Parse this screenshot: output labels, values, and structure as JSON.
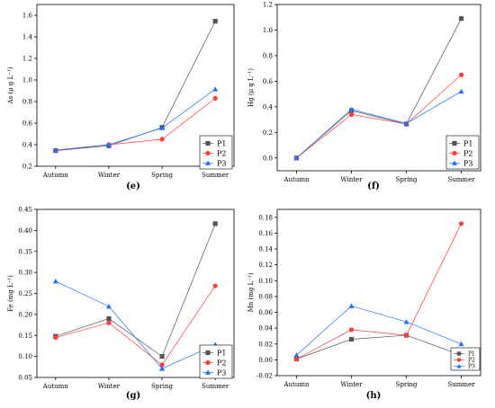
{
  "categories": [
    "Autumn",
    "Winter",
    "Spring",
    "Summer"
  ],
  "series_colors": {
    "P1": "#555555",
    "P2": "#ff3b3b",
    "P3": "#1e6fff"
  },
  "chart_data": [
    {
      "id": "e",
      "type": "line",
      "panel_label": "(e)",
      "xlabel": "",
      "ylabel": "As (μ g L⁻¹)",
      "ylim": [
        0.2,
        1.7
      ],
      "yticks": [
        "0.2",
        "0.4",
        "0.6",
        "0.8",
        "1.0",
        "1.2",
        "1.4",
        "1.6"
      ],
      "legend": "lower-right",
      "categories": [
        "Autumn",
        "Winter",
        "Spring",
        "Summer"
      ],
      "series": [
        {
          "name": "P1",
          "values": [
            0.345,
            0.39,
            0.56,
            1.545
          ]
        },
        {
          "name": "P2",
          "values": [
            0.345,
            0.4,
            0.45,
            0.83
          ]
        },
        {
          "name": "P3",
          "values": [
            0.35,
            0.4,
            0.555,
            0.915
          ]
        }
      ]
    },
    {
      "id": "f",
      "type": "line",
      "panel_label": "(f)",
      "xlabel": "",
      "ylabel": "Hg (μ g L⁻¹)",
      "ylim": [
        -0.1,
        1.2
      ],
      "yticks": [
        "0.0",
        "0.2",
        "0.4",
        "0.6",
        "0.8",
        "1.0",
        "1.2"
      ],
      "legend": "lower-right",
      "categories": [
        "Autumn",
        "Winter",
        "Spring",
        "Summer"
      ],
      "series": [
        {
          "name": "P1",
          "values": [
            0.0,
            0.37,
            0.265,
            1.09
          ]
        },
        {
          "name": "P2",
          "values": [
            0.0,
            0.34,
            0.265,
            0.65
          ]
        },
        {
          "name": "P3",
          "values": [
            0.0,
            0.38,
            0.27,
            0.52
          ]
        }
      ]
    },
    {
      "id": "g",
      "type": "line",
      "panel_label": "(g)",
      "xlabel": "",
      "ylabel": "Fe (mg L⁻¹)",
      "ylim": [
        0.05,
        0.45
      ],
      "yticks": [
        "0.05",
        "0.10",
        "0.15",
        "0.20",
        "0.25",
        "0.30",
        "0.35",
        "0.40",
        "0.45"
      ],
      "legend": "lower-right",
      "categories": [
        "Autumn",
        "Winter",
        "Spring",
        "Summer"
      ],
      "series": [
        {
          "name": "P1",
          "values": [
            0.148,
            0.19,
            0.1,
            0.416
          ]
        },
        {
          "name": "P2",
          "values": [
            0.145,
            0.18,
            0.08,
            0.268
          ]
        },
        {
          "name": "P3",
          "values": [
            0.279,
            0.219,
            0.071,
            0.128
          ]
        }
      ]
    },
    {
      "id": "h",
      "type": "line",
      "panel_label": "(h)",
      "xlabel": "",
      "ylabel": "Mn (mg L⁻¹)",
      "ylim": [
        -0.02,
        0.19
      ],
      "yticks": [
        "-0.02",
        "0.00",
        "0.02",
        "0.04",
        "0.06",
        "0.08",
        "0.10",
        "0.12",
        "0.14",
        "0.16",
        "0.18"
      ],
      "legend": "lower-right",
      "categories": [
        "Autumn",
        "Winter",
        "Spring",
        "Summer"
      ],
      "series": [
        {
          "name": "P1",
          "values": [
            0.001,
            0.026,
            0.031,
            0.006
          ]
        },
        {
          "name": "P2",
          "values": [
            0.001,
            0.038,
            0.031,
            0.172
          ]
        },
        {
          "name": "P3",
          "values": [
            0.006,
            0.068,
            0.048,
            0.02
          ]
        }
      ]
    }
  ]
}
